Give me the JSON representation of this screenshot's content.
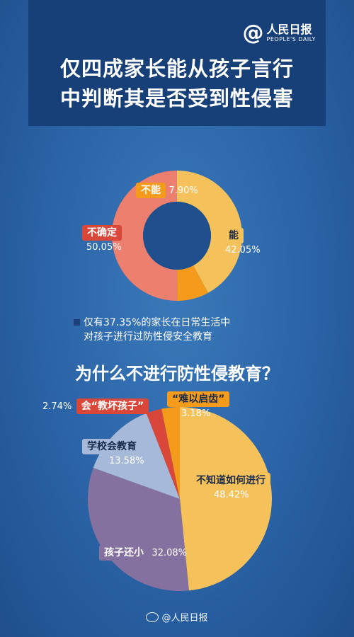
{
  "brand": {
    "at": "@",
    "name_cn": "人民日报",
    "name_en": "PEOPLE'S DAILY"
  },
  "title_lines": [
    "仅四成家长能从孩子言行",
    "中判断其是否受到性侵害"
  ],
  "note_lines": [
    "仅有37.35%的家长在日常生活中",
    "对孩子进行过防性侵安全教育"
  ],
  "chart2_title": "为什么不进行防性侵教育？",
  "footer": "@人民日报",
  "colors": {
    "header_bg": "#173f78",
    "yellow": "#f5c15a",
    "orange": "#f59b1c",
    "salmon": "#ec7f6d",
    "lavender": "#a6b9d8",
    "purple": "#85719f",
    "red": "#d9473a",
    "hole": "#1f4f8c"
  },
  "chart_data": [
    {
      "type": "pie",
      "variant": "donut",
      "categories": [
        "能",
        "不能",
        "不确定"
      ],
      "values": [
        42.05,
        7.9,
        50.05
      ],
      "labels": [
        "42.05%",
        "7.90%",
        "50.05%"
      ],
      "colors": [
        "#f5c15a",
        "#f59b1c",
        "#ec7f6d"
      ]
    },
    {
      "type": "pie",
      "title": "为什么不进行防性侵教育？",
      "categories": [
        "不知道如何进行",
        "孩子还小",
        "学校会教育",
        "会“教坏孩子”",
        "“难以启齿”"
      ],
      "values": [
        48.42,
        32.08,
        13.58,
        2.74,
        3.18
      ],
      "labels": [
        "48.42%",
        "32.08%",
        "13.58%",
        "2.74%",
        "3.18%"
      ],
      "colors": [
        "#f5c15a",
        "#85719f",
        "#a6b9d8",
        "#d9473a",
        "#f59b1c"
      ]
    }
  ]
}
